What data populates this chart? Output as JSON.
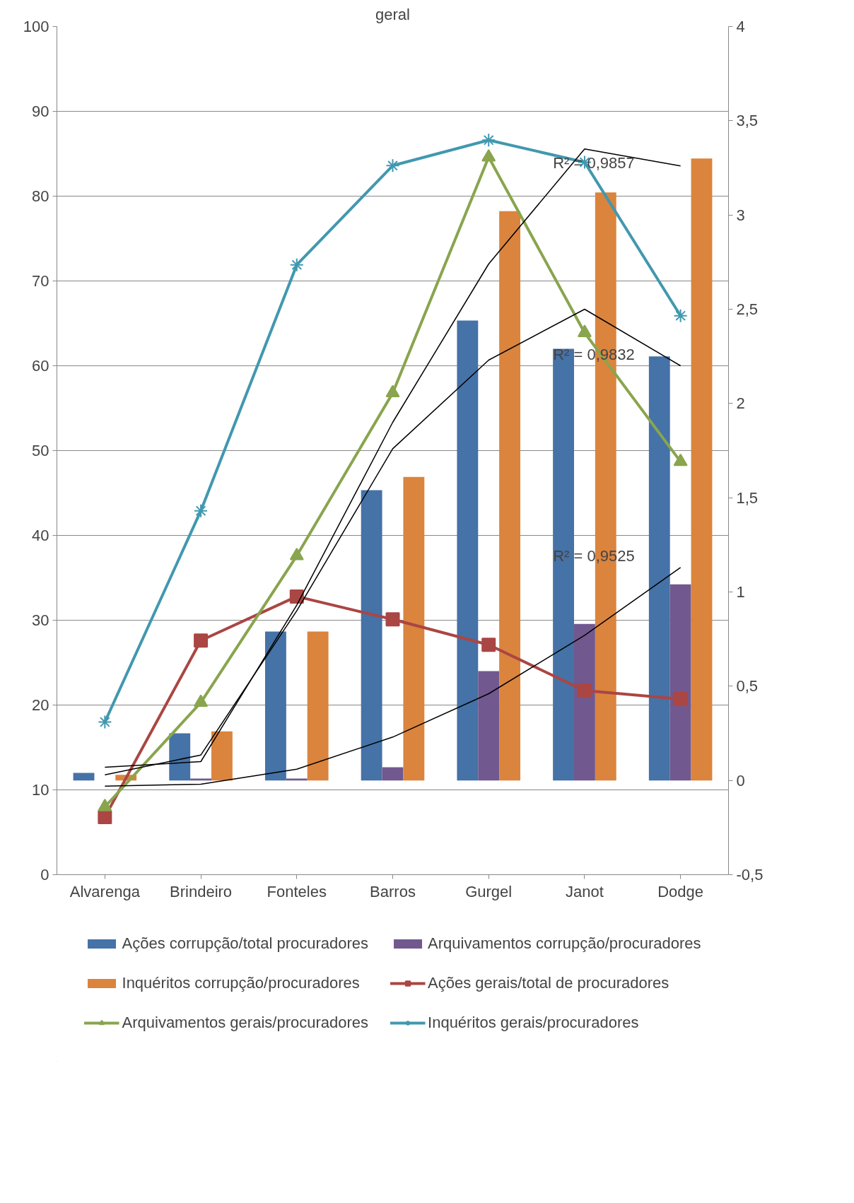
{
  "chart_data": {
    "type": "bar",
    "title": "geral",
    "categories": [
      "Alvarenga",
      "Brindeiro",
      "Fonteles",
      "Barros",
      "Gurgel",
      "Janot",
      "Dodge"
    ],
    "series": [
      {
        "name": "Ações corrupção/total procuradores",
        "axis": "y2",
        "color": "#4572a7",
        "values": [
          0.04,
          0.25,
          0.79,
          1.54,
          2.44,
          2.29,
          2.25
        ]
      },
      {
        "name": "Arquivamentos corrupção/procuradores",
        "axis": "y2",
        "color": "#71588f",
        "values": [
          0,
          0.01,
          0.01,
          0.07,
          0.58,
          0.83,
          1.04
        ]
      },
      {
        "name": "Inquéritos corrupção/procuradores",
        "axis": "y2",
        "color": "#db843d",
        "values": [
          0.03,
          0.26,
          0.79,
          1.61,
          3.02,
          3.12,
          3.3
        ]
      },
      {
        "name": "Ações gerais/total de procuradores",
        "type": "line",
        "color": "#aa4643",
        "marker": "square",
        "values": [
          6.8,
          27.6,
          32.8,
          30.1,
          27.1,
          21.7,
          20.7
        ]
      },
      {
        "name": "Arquivamentos gerais/procuradores",
        "type": "line",
        "color": "#89a54e",
        "marker": "triangle",
        "values": [
          8.0,
          20.3,
          37.6,
          56.8,
          84.6,
          63.9,
          48.7
        ]
      },
      {
        "name": "Inquéritos gerais/procuradores",
        "type": "line",
        "color": "#4198af",
        "marker": "cross",
        "values": [
          18.0,
          42.9,
          71.9,
          83.6,
          86.6,
          84.0,
          65.9
        ]
      },
      {
        "type": "line",
        "axis": "y2",
        "color": "#000000",
        "values": [
          0.07,
          0.1,
          0.93,
          1.9,
          2.74,
          3.35,
          3.26
        ]
      },
      {
        "type": "line",
        "axis": "y2",
        "color": "#000000",
        "values": [
          0.03,
          0.135,
          0.9,
          1.76,
          2.23,
          2.5,
          2.2
        ]
      },
      {
        "type": "line",
        "axis": "y2",
        "color": "#000000",
        "values": [
          -0.03,
          -0.02,
          0.06,
          0.23,
          0.46,
          0.77,
          1.13
        ]
      }
    ],
    "ylim": [
      0,
      100
    ],
    "yticks": [
      0,
      10,
      20,
      30,
      40,
      50,
      60,
      70,
      80,
      90,
      100
    ],
    "y2lim": [
      -0.5,
      4
    ],
    "y2ticks": [
      {
        "value": -0.5,
        "label": "-0,5"
      },
      0,
      {
        "value": 0.5,
        "label": "0,5"
      },
      1,
      {
        "value": 1.5,
        "label": "1,5"
      },
      2,
      {
        "value": 2.5,
        "label": "2,5"
      },
      3,
      {
        "value": 3.5,
        "label": "3,5"
      },
      4
    ],
    "annotations": [
      "R² = 0,9857",
      "R² = 0,9832",
      "R² = 0,9525"
    ],
    "grid": "y",
    "legend": "bottom"
  }
}
